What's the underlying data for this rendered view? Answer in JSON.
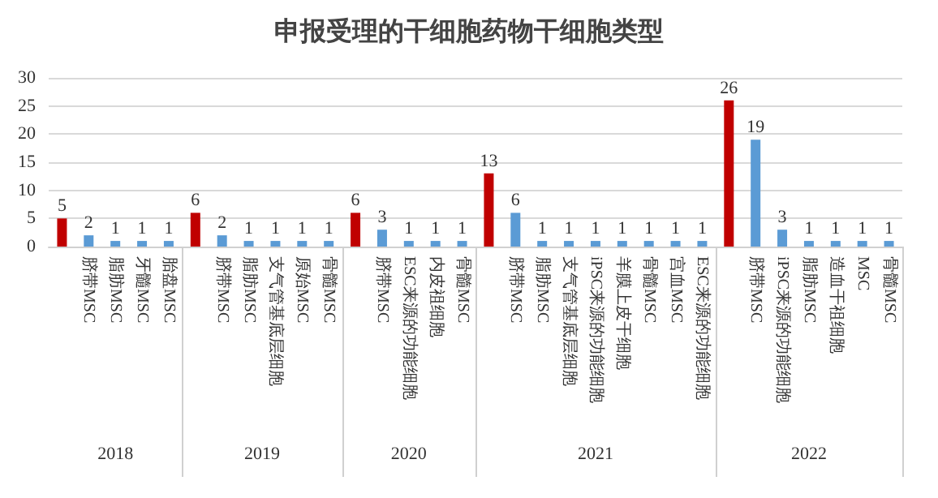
{
  "chart_data": {
    "type": "bar",
    "title": "申报受理的干细胞药物干细胞类型",
    "categories": [
      null,
      "脐带MSC",
      "脂肪MSC",
      "牙髓MSC",
      "胎盘MSC",
      null,
      "脐带MSC",
      "脂肪MSC",
      "支气管基底层细胞",
      "原始MSC",
      "骨髓MSC",
      null,
      "脐带MSC",
      "ESC来源的功能细胞",
      "内皮祖细胞",
      "骨髓MSC",
      null,
      "脐带MSC",
      "脂肪MSC",
      "支气管基底层细胞",
      "iPSC来源的功能细胞",
      "羊膜上皮干细胞",
      "骨髓MSC",
      "宫血MSC",
      "ESC来源的功能细胞",
      null,
      "脐带MSC",
      "iPSC来源的功能细胞",
      "脂肪MSC",
      "造血干祖细胞",
      "MSC",
      "骨髓MSC"
    ],
    "values": [
      5,
      2,
      1,
      1,
      1,
      6,
      2,
      1,
      1,
      1,
      1,
      6,
      3,
      1,
      1,
      1,
      13,
      6,
      1,
      1,
      1,
      1,
      1,
      1,
      1,
      26,
      19,
      3,
      1,
      1,
      1,
      1
    ],
    "colors": [
      "#c00000",
      "#5b9bd5",
      "#5b9bd5",
      "#5b9bd5",
      "#5b9bd5",
      "#c00000",
      "#5b9bd5",
      "#5b9bd5",
      "#5b9bd5",
      "#5b9bd5",
      "#5b9bd5",
      "#c00000",
      "#5b9bd5",
      "#5b9bd5",
      "#5b9bd5",
      "#5b9bd5",
      "#c00000",
      "#5b9bd5",
      "#5b9bd5",
      "#5b9bd5",
      "#5b9bd5",
      "#5b9bd5",
      "#5b9bd5",
      "#5b9bd5",
      "#5b9bd5",
      "#c00000",
      "#5b9bd5",
      "#5b9bd5",
      "#5b9bd5",
      "#5b9bd5",
      "#5b9bd5",
      "#5b9bd5"
    ],
    "annotations": [
      "2018",
      "2019",
      "2020",
      "2021",
      "2022"
    ],
    "ylim": [
      0,
      30
    ],
    "yticks": [
      0,
      5,
      10,
      15,
      20,
      25,
      30
    ],
    "grid": "y",
    "data_labels": true
  }
}
